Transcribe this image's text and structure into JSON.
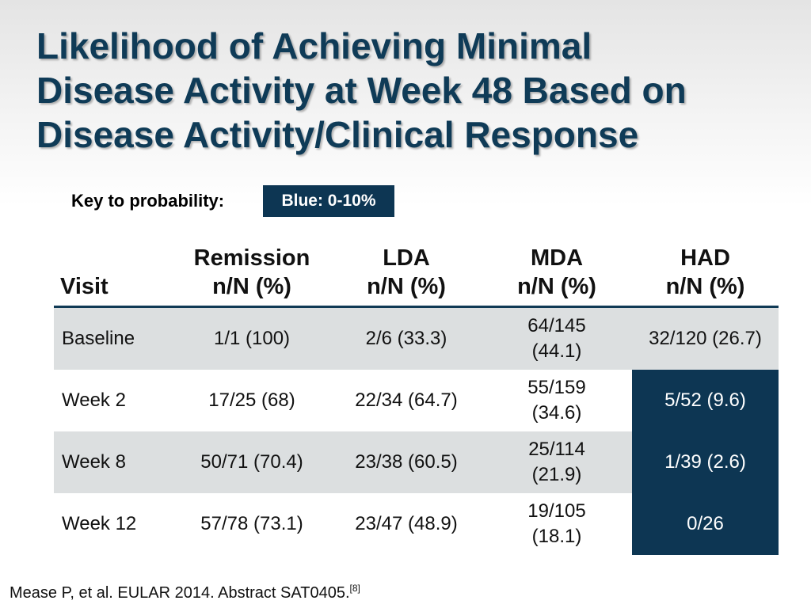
{
  "title": {
    "line1": "Likelihood of Achieving Minimal",
    "line2": "Disease Activity at Week 48 Based on",
    "line3": "Disease Activity/Clinical Response"
  },
  "key": {
    "label": "Key to probability:",
    "value": "Blue: 0-10%",
    "color": "#0d3653"
  },
  "table": {
    "headers": [
      {
        "line1": "",
        "line2": "Visit"
      },
      {
        "line1": "Remission",
        "line2": "n/N (%)"
      },
      {
        "line1": "LDA",
        "line2": "n/N (%)"
      },
      {
        "line1": "MDA",
        "line2": "n/N (%)"
      },
      {
        "line1": "HAD",
        "line2": "n/N (%)"
      }
    ],
    "rows": [
      {
        "visit": "Baseline",
        "remission": "1/1 (100)",
        "lda": "2/6 (33.3)",
        "mda_1": "64/145",
        "mda_2": "(44.1)",
        "had": "32/120 (26.7)",
        "had_highlight": false
      },
      {
        "visit": "Week 2",
        "remission": "17/25 (68)",
        "lda": "22/34 (64.7)",
        "mda_1": "55/159",
        "mda_2": "(34.6)",
        "had": "5/52 (9.6)",
        "had_highlight": true
      },
      {
        "visit": "Week 8",
        "remission": "50/71 (70.4)",
        "lda": "23/38 (60.5)",
        "mda_1": "25/114",
        "mda_2": "(21.9)",
        "had": "1/39 (2.6)",
        "had_highlight": true
      },
      {
        "visit": "Week 12",
        "remission": "57/78 (73.1)",
        "lda": "23/47 (48.9)",
        "mda_1": "19/105",
        "mda_2": "(18.1)",
        "had": "0/26",
        "had_highlight": true
      }
    ]
  },
  "citation": {
    "text": "Mease P, et al. EULAR 2014. Abstract SAT0405.",
    "ref": "[8]"
  },
  "colors": {
    "title": "#0f3b57",
    "highlight": "#0d3653",
    "row_shade": "#dcdfe0"
  }
}
